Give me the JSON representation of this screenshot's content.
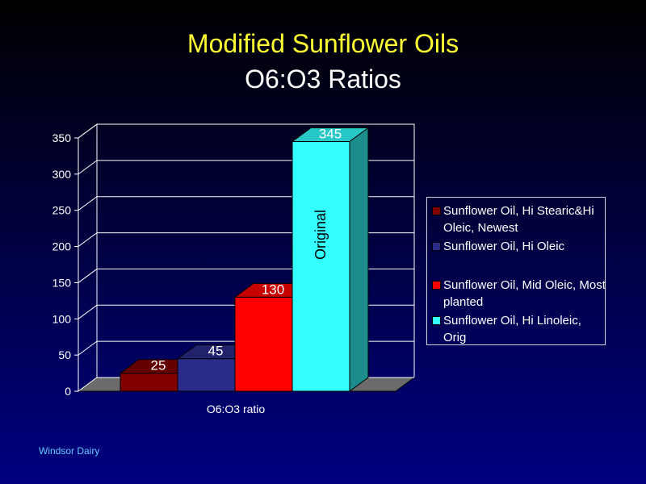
{
  "title": {
    "line1": "Modified  Sunflower  Oils",
    "line2": "O6:O3  Ratios",
    "line1_color": "#ffff33",
    "line2_color": "#ffffff"
  },
  "footer": "Windsor  Dairy",
  "chart_data": {
    "type": "bar",
    "style": "3d-clustered-column",
    "categories": [
      "O6:O3 ratio"
    ],
    "xlabel": "",
    "ylabel": "",
    "ylim": [
      0,
      350
    ],
    "yticks": [
      "0",
      "50",
      "100",
      "150",
      "200",
      "250",
      "300",
      "350"
    ],
    "grid": true,
    "legend_position": "right",
    "series": [
      {
        "name": "Sunflower Oil, Hi Stearic&Hi Oleic, Newest",
        "values": [
          25
        ],
        "data_label": "25",
        "color": "#800000"
      },
      {
        "name": "Sunflower Oil, Hi Oleic",
        "values": [
          45
        ],
        "data_label": "45",
        "color": "#2b2b8c"
      },
      {
        "name": "Sunflower Oil, Mid Oleic, Most planted",
        "values": [
          130
        ],
        "data_label": "130",
        "color": "#ff0000"
      },
      {
        "name": "Sunflower Oil, Hi Linoleic, Orig",
        "values": [
          345
        ],
        "data_label": "345",
        "color": "#33ffff"
      }
    ],
    "annotations": [
      {
        "text": "Original",
        "series": 3
      }
    ]
  }
}
